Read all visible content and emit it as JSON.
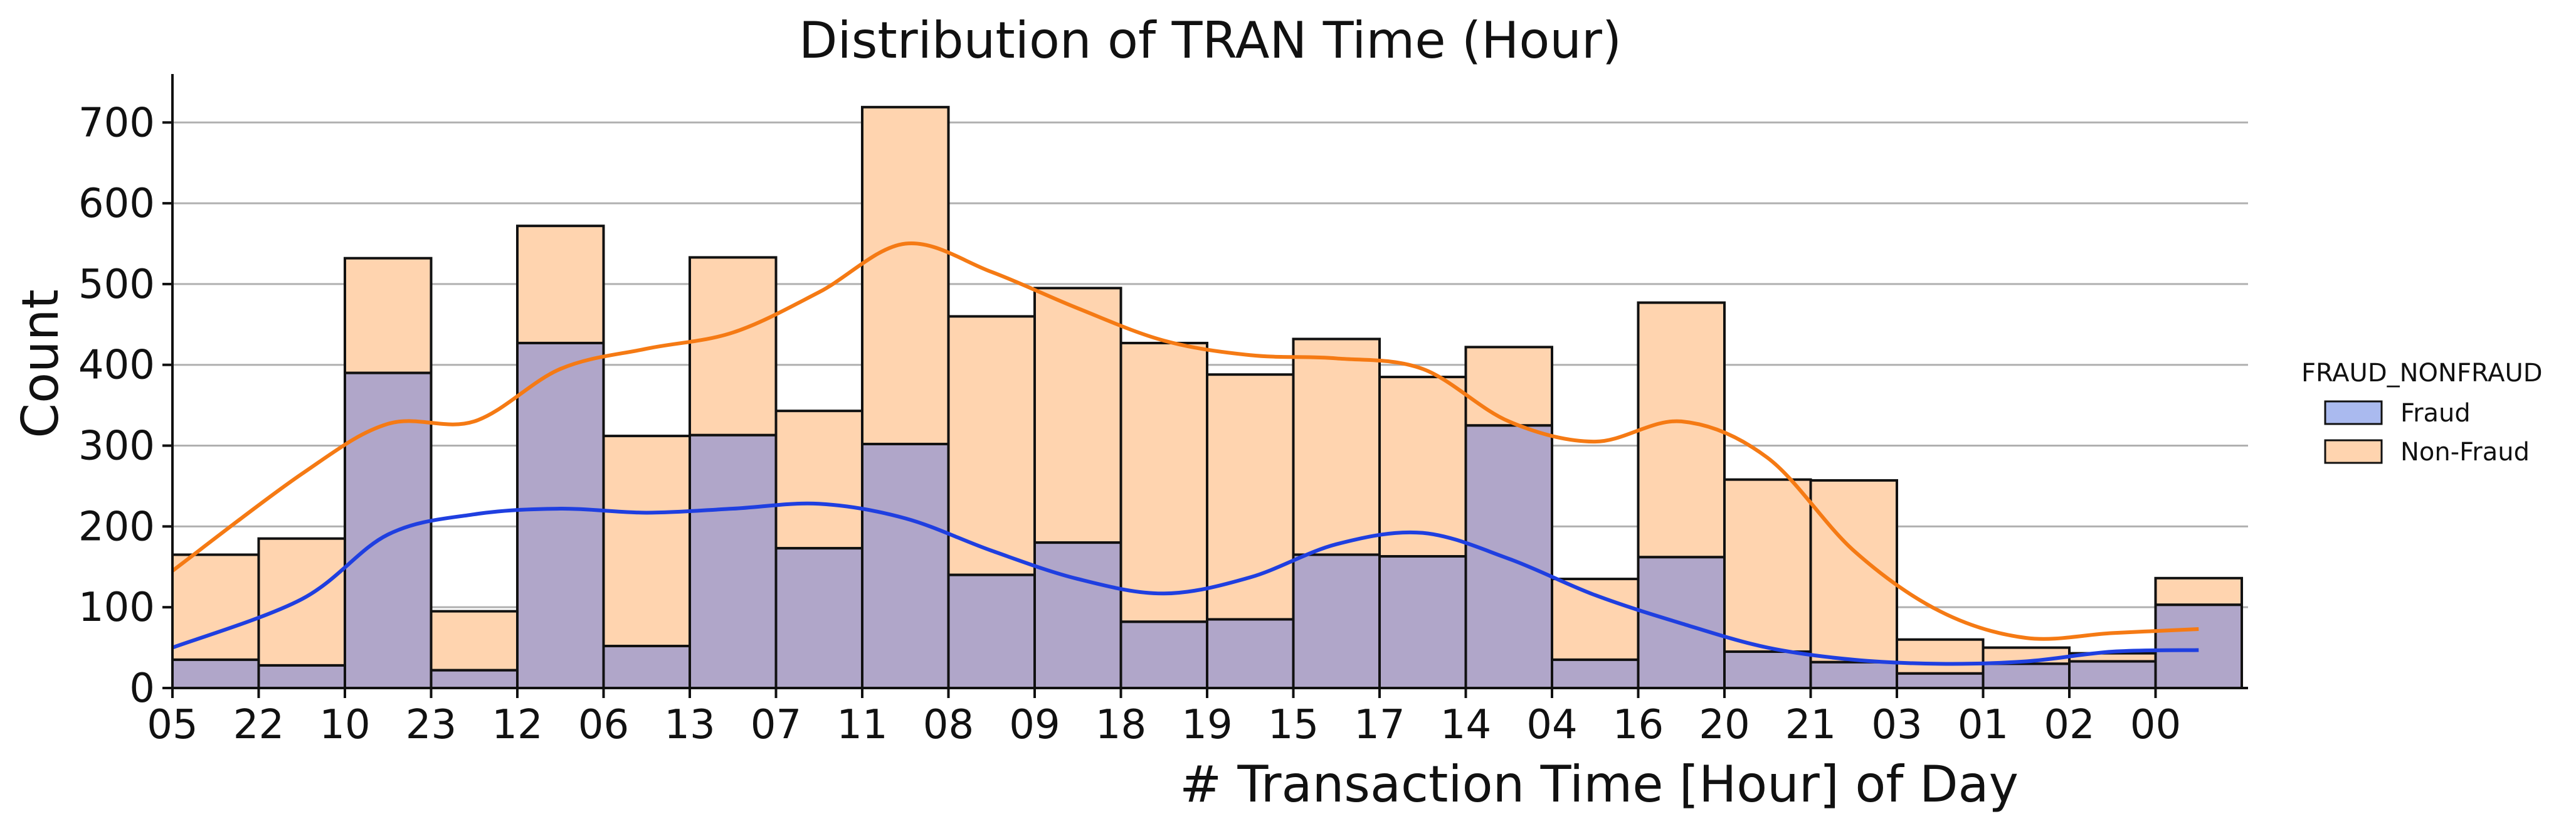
{
  "chart_data": {
    "type": "bar",
    "title": "Distribution of TRAN Time (Hour)",
    "xlabel": "# Transaction Time [Hour] of Day",
    "ylabel": "Count",
    "categories": [
      "05",
      "22",
      "10",
      "23",
      "12",
      "06",
      "13",
      "07",
      "11",
      "08",
      "09",
      "18",
      "19",
      "15",
      "17",
      "14",
      "04",
      "16",
      "20",
      "21",
      "03",
      "01",
      "02",
      "00"
    ],
    "series": [
      {
        "name": "Fraud",
        "color": "#4169E1",
        "bar_color": "#B0A6C9",
        "kde_color": "#1F3FE0",
        "values": [
          35,
          28,
          390,
          22,
          427,
          52,
          313,
          173,
          302,
          140,
          180,
          82,
          85,
          165,
          163,
          325,
          35,
          162,
          45,
          32,
          18,
          30,
          33,
          103
        ]
      },
      {
        "name": "Non-Fraud",
        "color": "#FF8C1A",
        "bar_color": "#FFD4AF",
        "kde_color": "#F57A14",
        "values": [
          130,
          157,
          142,
          73,
          145,
          260,
          220,
          170,
          417,
          320,
          315,
          345,
          303,
          267,
          222,
          97,
          100,
          315,
          213,
          225,
          42,
          20,
          10,
          33
        ]
      }
    ],
    "stacked": true,
    "kde": {
      "Fraud": [
        50,
        110,
        190,
        215,
        222,
        217,
        222,
        228,
        210,
        170,
        135,
        117,
        137,
        178,
        192,
        160,
        115,
        80,
        50,
        35,
        30,
        33,
        45,
        47
      ],
      "Non-Fraud": [
        145,
        265,
        327,
        330,
        395,
        420,
        440,
        490,
        550,
        515,
        470,
        430,
        412,
        408,
        395,
        330,
        305,
        330,
        285,
        170,
        95,
        62,
        68,
        73
      ]
    },
    "ylim": [
      0,
      760
    ],
    "yticks": [
      0,
      100,
      200,
      300,
      400,
      500,
      600,
      700
    ],
    "grid": "y",
    "legend_title": "FRAUD_NONFRAUD",
    "legend_position": "right"
  }
}
